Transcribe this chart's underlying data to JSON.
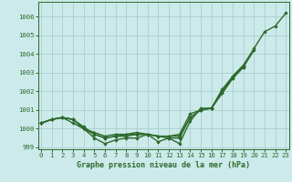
{
  "x": [
    0,
    1,
    2,
    3,
    4,
    5,
    6,
    7,
    8,
    9,
    10,
    11,
    12,
    13,
    14,
    15,
    16,
    17,
    18,
    19,
    20,
    21,
    22,
    23
  ],
  "series": [
    {
      "name": "line_top",
      "y": [
        1000.3,
        1000.5,
        1000.6,
        1000.5,
        1000.0,
        999.8,
        999.6,
        999.7,
        999.7,
        999.8,
        999.7,
        999.6,
        999.6,
        999.6,
        1000.6,
        1001.0,
        1001.1,
        1002.0,
        1002.8,
        1003.4,
        1004.3,
        1005.2,
        1005.5,
        1006.2
      ],
      "color": "#2d6a2d",
      "linewidth": 1.0,
      "marker": "D",
      "markersize": 1.8,
      "linestyle": "-"
    },
    {
      "name": "line_mid1",
      "y": [
        1000.3,
        1000.5,
        1000.6,
        1000.5,
        1000.1,
        999.7,
        999.5,
        999.6,
        999.7,
        999.7,
        999.7,
        999.6,
        999.6,
        999.7,
        1000.8,
        1001.0,
        1001.1,
        1001.9,
        1002.7,
        1003.3,
        1004.2,
        null,
        null,
        null
      ],
      "color": "#2d6a2d",
      "linewidth": 1.0,
      "marker": "D",
      "markersize": 1.8,
      "linestyle": "-"
    },
    {
      "name": "line_mid2",
      "y": [
        1000.3,
        1000.5,
        1000.6,
        1000.5,
        1000.0,
        999.7,
        999.5,
        999.6,
        999.6,
        999.7,
        999.7,
        999.6,
        999.5,
        999.5,
        1000.6,
        1001.0,
        1001.1,
        1001.9,
        1002.7,
        1003.3,
        null,
        null,
        null,
        null
      ],
      "color": "#2d6a2d",
      "linewidth": 1.0,
      "marker": "D",
      "markersize": 1.8,
      "linestyle": "-"
    },
    {
      "name": "line_low",
      "y": [
        1000.3,
        1000.5,
        1000.6,
        1000.3,
        1000.0,
        999.5,
        999.2,
        999.4,
        999.5,
        999.5,
        999.7,
        999.3,
        999.5,
        999.2,
        1000.4,
        1001.1,
        1001.1,
        1002.1,
        1002.8,
        1003.4,
        null,
        null,
        null,
        null
      ],
      "color": "#2d6a2d",
      "linewidth": 1.0,
      "marker": "D",
      "markersize": 1.8,
      "linestyle": "-"
    }
  ],
  "xlim": [
    -0.3,
    23.3
  ],
  "ylim": [
    998.9,
    1006.8
  ],
  "yticks": [
    999,
    1000,
    1001,
    1002,
    1003,
    1004,
    1005,
    1006
  ],
  "xticks": [
    0,
    1,
    2,
    3,
    4,
    5,
    6,
    7,
    8,
    9,
    10,
    11,
    12,
    13,
    14,
    15,
    16,
    17,
    18,
    19,
    20,
    21,
    22,
    23
  ],
  "xlabel": "Graphe pression niveau de la mer (hPa)",
  "background_color": "#cceaea",
  "grid_color": "#aacece",
  "axis_color": "#2d6a2d",
  "tick_color": "#2d6a2d",
  "label_color": "#2d6a2d"
}
